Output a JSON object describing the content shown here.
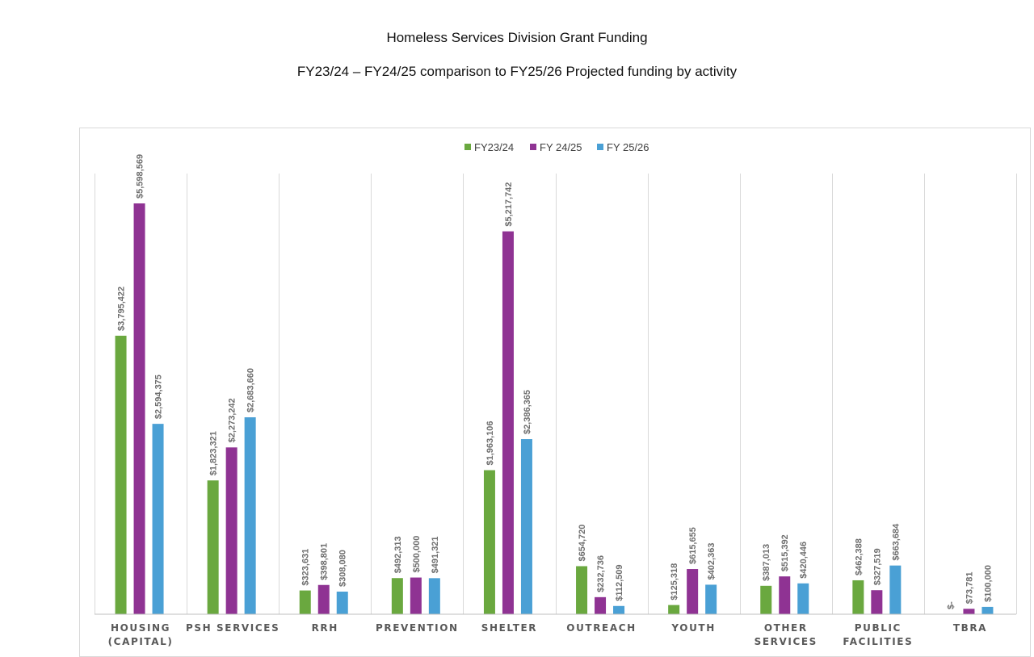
{
  "header": {
    "title": "Homeless Services Division Grant Funding",
    "subtitle": "FY23/24 – FY24/25 comparison to FY25/26 Projected funding by activity"
  },
  "chart_data": {
    "type": "bar",
    "title": "Homeless Services Division Grant Funding",
    "subtitle": "FY23/24 – FY24/25 comparison to FY25/26 Projected funding by activity",
    "xlabel": "",
    "ylabel": "",
    "ylim": [
      0,
      6000000
    ],
    "grid": false,
    "legend_position": "top-center",
    "categories": [
      [
        "HOUSING",
        "(CAPITAL)"
      ],
      [
        "PSH SERVICES"
      ],
      [
        "RRH"
      ],
      [
        "PREVENTION"
      ],
      [
        "SHELTER"
      ],
      [
        "OUTREACH"
      ],
      [
        "YOUTH"
      ],
      [
        "OTHER",
        "SERVICES"
      ],
      [
        "PUBLIC",
        "FACILITIES"
      ],
      [
        "TBRA"
      ]
    ],
    "series": [
      {
        "name": "FY23/24",
        "color": "#6aa83f",
        "values": [
          3795422,
          1823321,
          323631,
          492313,
          1963106,
          654720,
          125318,
          387013,
          462388,
          0
        ],
        "labels": [
          "$3,795,422",
          "$1,823,321",
          "$323,631",
          "$492,313",
          "$1,963,106",
          "$654,720",
          "$125,318",
          "$387,013",
          "$462,388",
          "$-"
        ]
      },
      {
        "name": "FY 24/25",
        "color": "#8f3393",
        "values": [
          5598569,
          2273242,
          398801,
          500000,
          5217742,
          232736,
          615655,
          515392,
          327519,
          73781
        ],
        "labels": [
          "$5,598,569",
          "$2,273,242",
          "$398,801",
          "$500,000",
          "$5,217,742",
          "$232,736",
          "$615,655",
          "$515,392",
          "$327,519",
          "$73,781"
        ]
      },
      {
        "name": "FY 25/26",
        "color": "#4aa0d5",
        "values": [
          2594375,
          2683660,
          308080,
          491321,
          2386365,
          112509,
          402363,
          420446,
          663684,
          100000
        ],
        "labels": [
          "$2,594,375",
          "$2,683,660",
          "$308,080",
          "$491,321",
          "$2,386,365",
          "$112,509",
          "$402,363",
          "$420,446",
          "$663,684",
          "$100,000"
        ]
      }
    ]
  }
}
